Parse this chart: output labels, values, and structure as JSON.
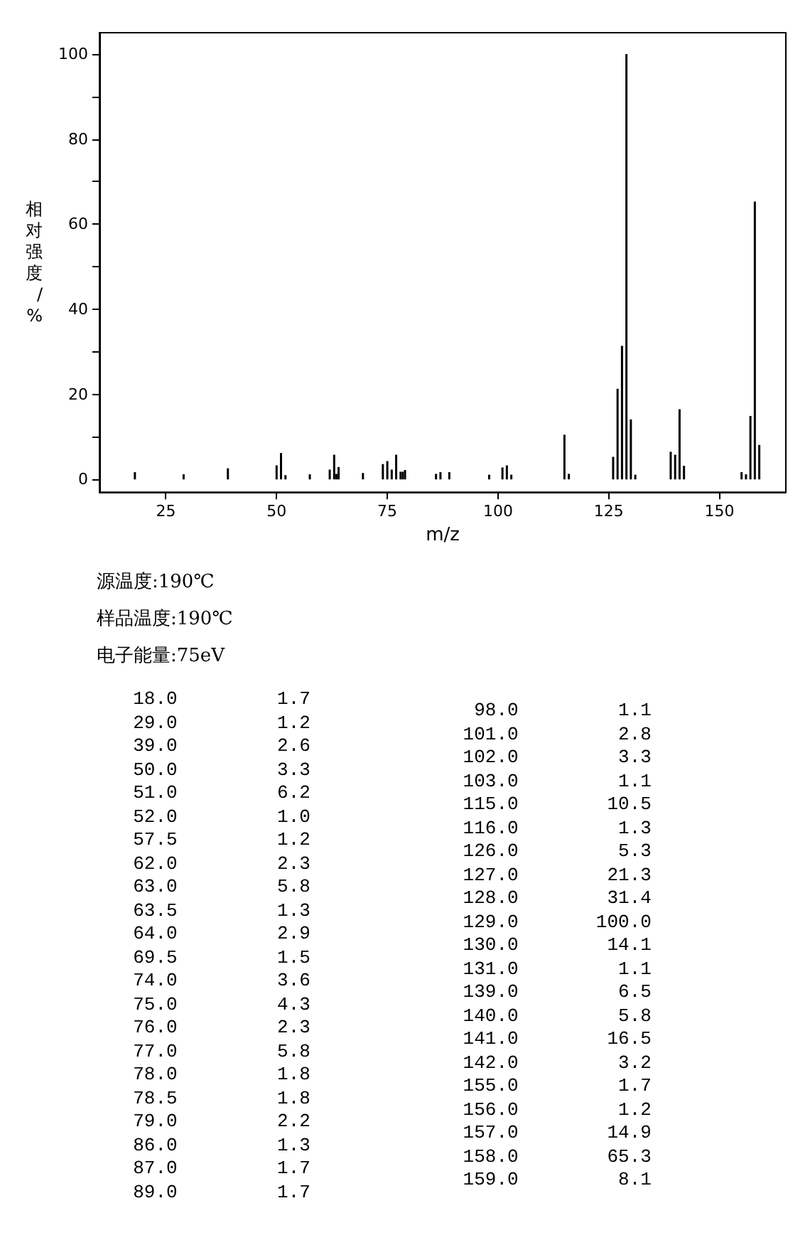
{
  "chart_data": {
    "type": "bar",
    "xlabel": "m/z",
    "ylabel": "相对强度/%",
    "x": [
      18.0,
      29.0,
      39.0,
      50.0,
      51.0,
      52.0,
      57.5,
      62.0,
      63.0,
      63.5,
      64.0,
      69.5,
      74.0,
      75.0,
      76.0,
      77.0,
      78.0,
      78.5,
      79.0,
      86.0,
      87.0,
      89.0,
      98.0,
      101.0,
      102.0,
      103.0,
      115.0,
      116.0,
      126.0,
      127.0,
      128.0,
      129.0,
      130.0,
      131.0,
      139.0,
      140.0,
      141.0,
      142.0,
      155.0,
      156.0,
      157.0,
      158.0,
      159.0
    ],
    "values": [
      1.7,
      1.2,
      2.6,
      3.3,
      6.2,
      1.0,
      1.2,
      2.3,
      5.8,
      1.3,
      2.9,
      1.5,
      3.6,
      4.3,
      2.3,
      5.8,
      1.8,
      1.8,
      2.2,
      1.3,
      1.7,
      1.7,
      1.1,
      2.8,
      3.3,
      1.1,
      10.5,
      1.3,
      5.3,
      21.3,
      31.4,
      100.0,
      14.1,
      1.1,
      6.5,
      5.8,
      16.5,
      3.2,
      1.7,
      1.2,
      14.9,
      65.3,
      8.1
    ],
    "color": "#000000",
    "xlim": [
      10,
      165
    ],
    "xticks": [
      25,
      50,
      75,
      100,
      125,
      150
    ],
    "ylim": [
      -3,
      105
    ],
    "yticks": [
      0,
      {
        "value": 10,
        "label": null
      },
      20,
      {
        "value": 30,
        "label": null
      },
      40,
      {
        "value": 50,
        "label": null
      },
      60,
      {
        "value": 70,
        "label": null
      },
      80,
      {
        "value": 90,
        "label": null
      },
      100
    ],
    "annotations": [
      "源温度:190℃",
      "样品温度:190℃",
      "电子能量:75eV",
      "18.0 1.7",
      "29.0 1.2",
      "39.0 2.6",
      "50.0 3.3",
      "51.0 6.2",
      "52.0 1.0",
      "57.5 1.2",
      "62.0 2.3",
      "63.0 5.8",
      "63.5 1.3",
      "64.0 2.9",
      "69.5 1.5",
      "74.0 3.6",
      "75.0 4.3",
      "76.0 2.3",
      "77.0 5.8",
      "78.0 1.8",
      "78.5 1.8",
      "79.0 2.2",
      "86.0 1.3",
      "87.0 1.7",
      "89.0 1.7",
      "98.0 1.1",
      "101.0 2.8",
      "102.0 3.3",
      "103.0 1.1",
      "115.0 10.5",
      "116.0 1.3",
      "126.0 5.3",
      "127.0 21.3",
      "128.0 31.4",
      "129.0 100.0",
      "130.0 14.1",
      "131.0 1.1",
      "139.0 6.5",
      "140.0 5.8",
      "141.0 16.5",
      "142.0 3.2",
      "155.0 1.7",
      "156.0 1.2",
      "157.0 14.9",
      "158.0 65.3",
      "159.0 8.1"
    ]
  }
}
